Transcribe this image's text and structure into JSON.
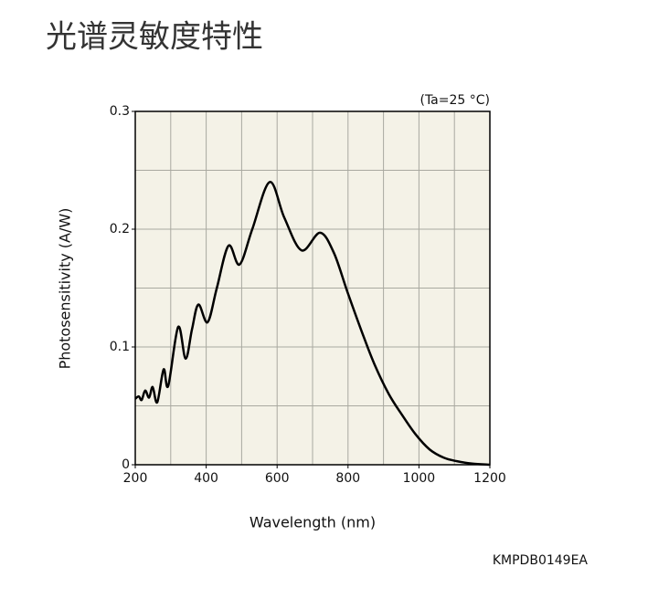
{
  "chart_data": {
    "type": "line",
    "title": "光谱灵敏度特性",
    "annotation": "(Ta=25 °C)",
    "footer": "KMPDB0149EA",
    "xlabel": "Wavelength (nm)",
    "ylabel": "Photosensitivity (A/W)",
    "x": [
      200,
      210,
      218,
      228,
      239,
      249,
      262,
      280,
      293,
      321,
      342,
      360,
      378,
      404,
      430,
      463,
      494,
      530,
      579,
      620,
      669,
      721,
      760,
      798,
      840,
      875,
      915,
      953,
      990,
      1030,
      1070,
      1107,
      1150,
      1200
    ],
    "series": [
      {
        "color": "#000000",
        "values": [
          0.056,
          0.058,
          0.055,
          0.063,
          0.057,
          0.066,
          0.053,
          0.081,
          0.067,
          0.117,
          0.09,
          0.115,
          0.136,
          0.121,
          0.15,
          0.186,
          0.17,
          0.2,
          0.24,
          0.21,
          0.182,
          0.197,
          0.18,
          0.147,
          0.112,
          0.085,
          0.06,
          0.042,
          0.026,
          0.013,
          0.006,
          0.003,
          0.001,
          0.0
        ]
      }
    ],
    "xlim": [
      200,
      1200
    ],
    "ylim": [
      0,
      0.3
    ],
    "xticks": [
      200,
      400,
      600,
      800,
      1000,
      1200
    ],
    "yticks": [
      0,
      0.1,
      0.2,
      0.3
    ],
    "xgrid": [
      300,
      400,
      500,
      600,
      700,
      800,
      900,
      1000,
      1100
    ],
    "ygrid": [
      0.05,
      0.1,
      0.15,
      0.2,
      0.25
    ],
    "grid": true
  }
}
